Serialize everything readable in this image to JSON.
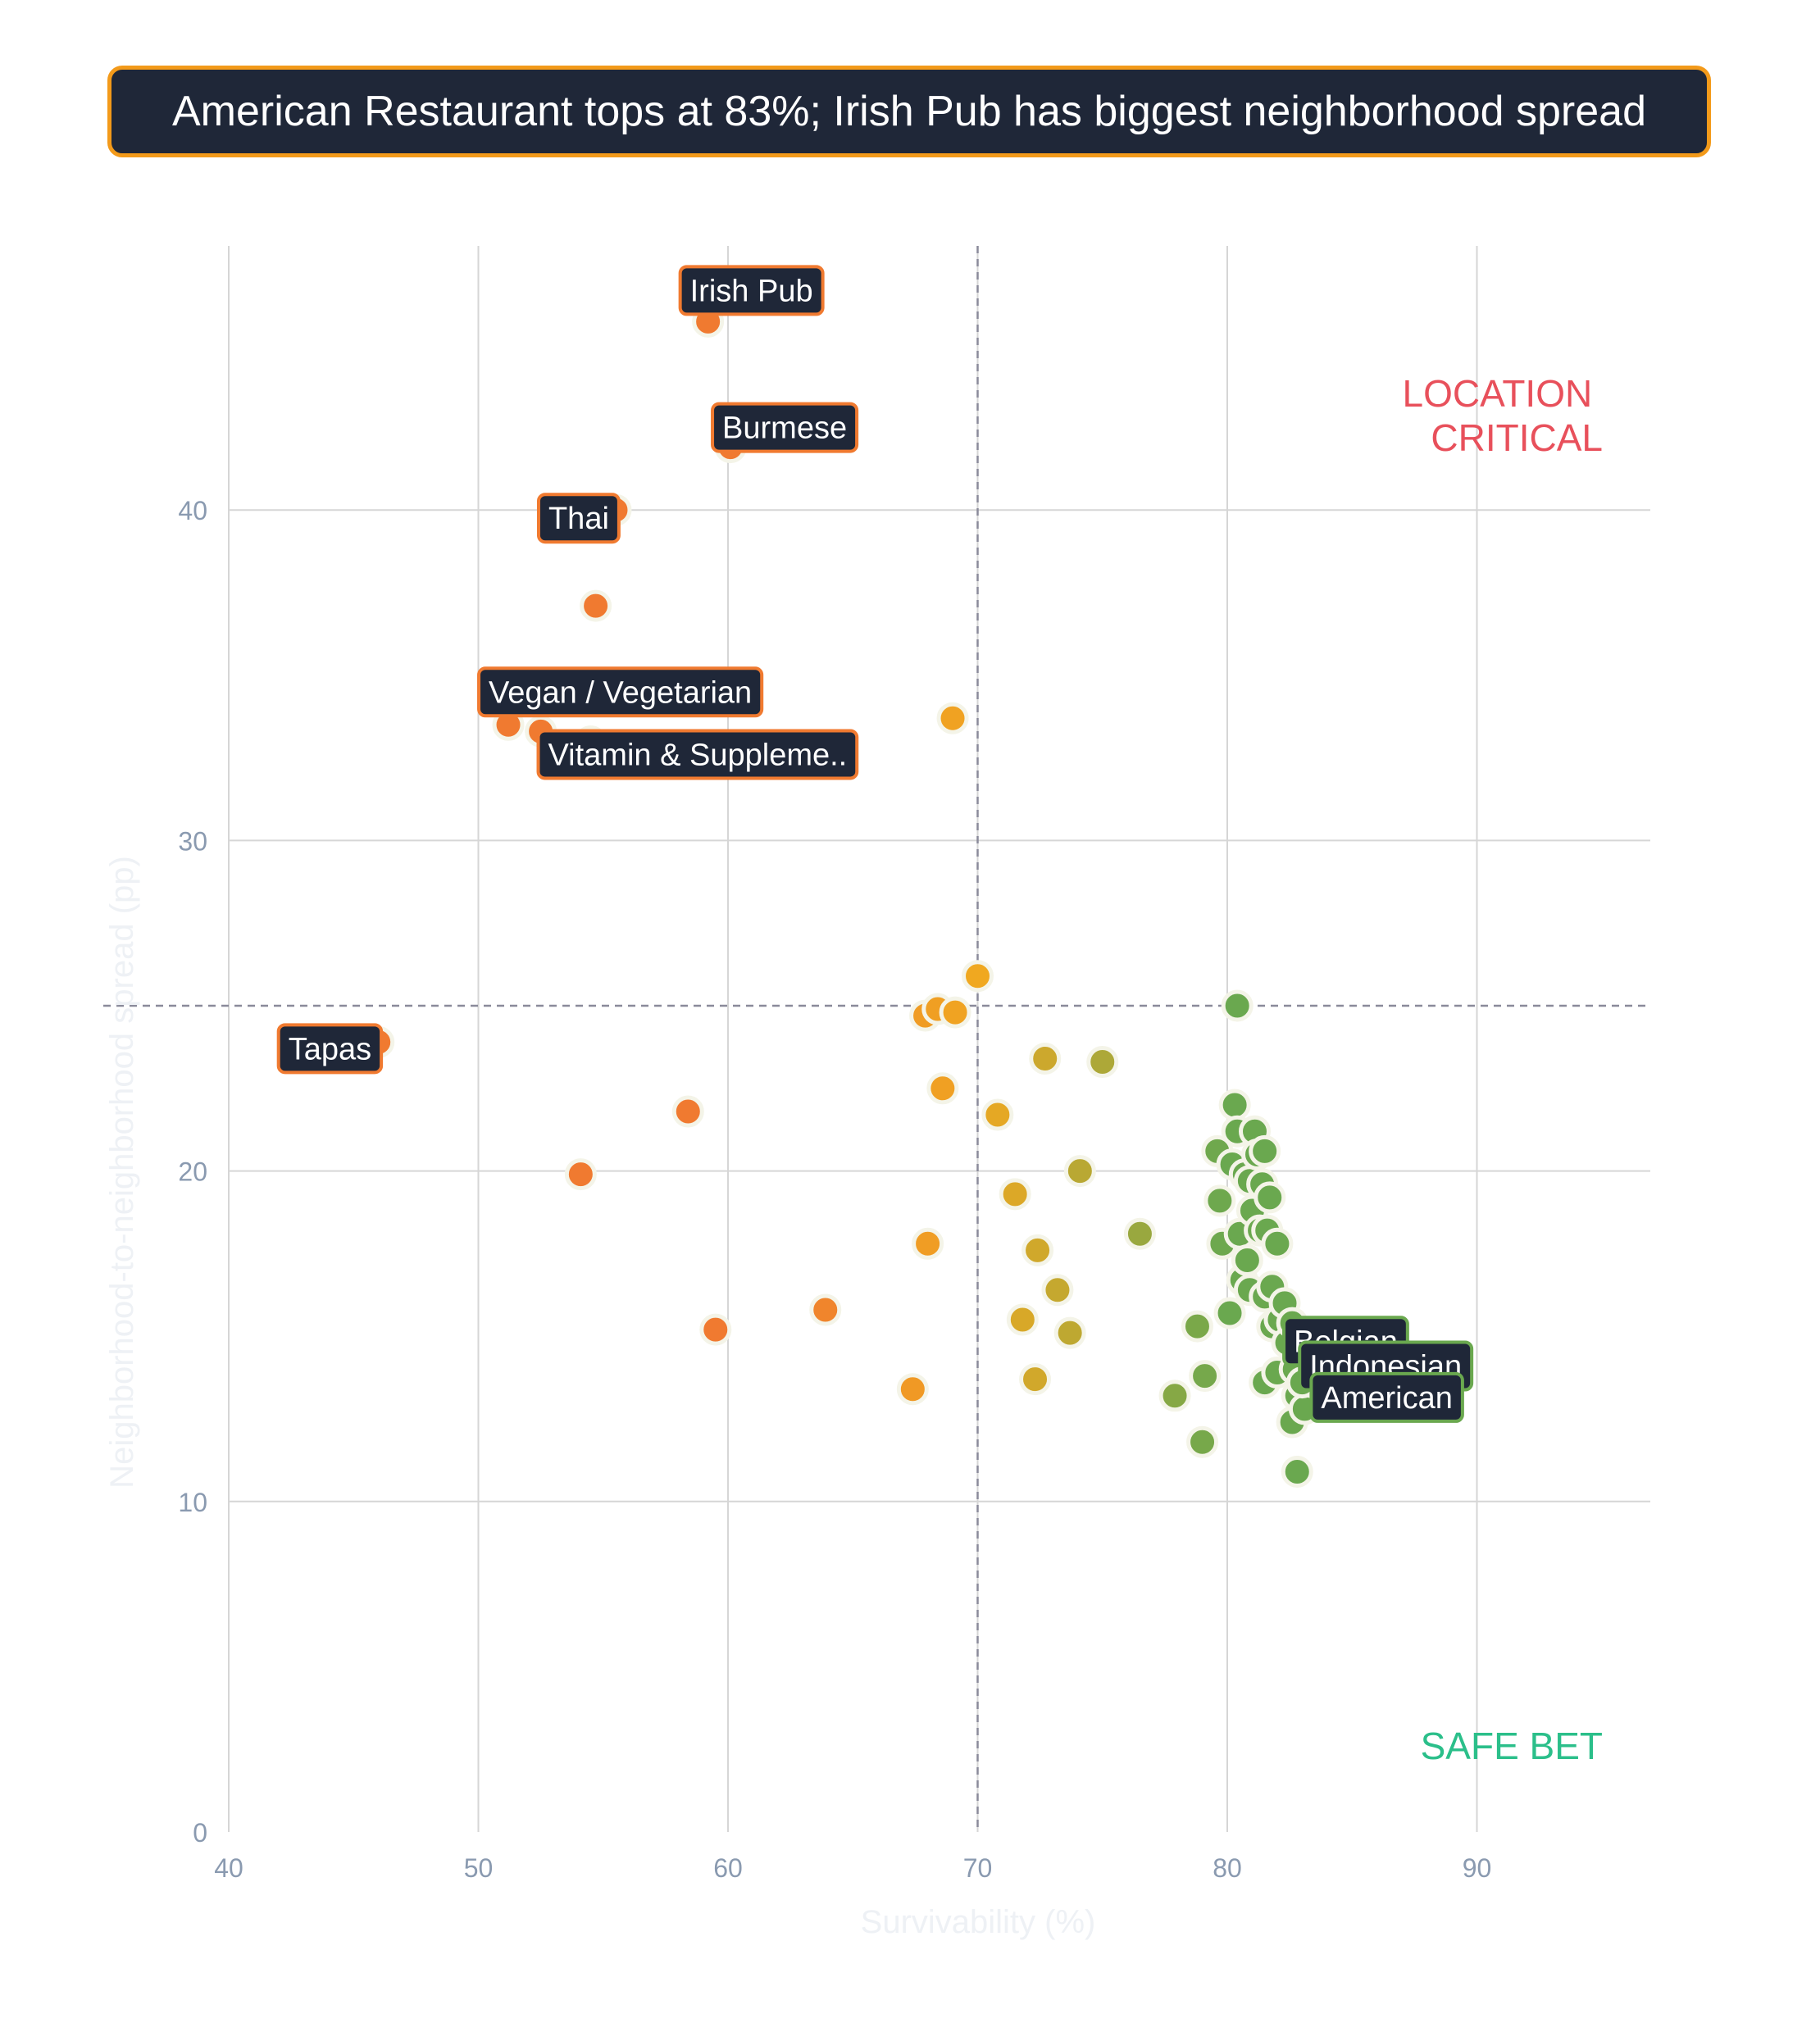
{
  "title": "American Restaurant tops at 83%; Irish Pub has biggest neighborhood spread",
  "colors": {
    "title_bg": "#1f2738",
    "title_border": "#f39a1a",
    "location_critical": "#e8505b",
    "safe_bet": "#2bbf8a",
    "grid": "#d6d6d6",
    "reference_line": "#8a8a9a",
    "low_survival": "#f07a30",
    "mid_survival": "#f0a820",
    "high_survival": "#6aa84f"
  },
  "chart_data": {
    "type": "scatter",
    "xlabel": "Survivability (%)",
    "ylabel": "Neighborhood-to-neighborhood spread (pp)",
    "xlim": [
      40,
      97
    ],
    "ylim": [
      0,
      48
    ],
    "xticks": [
      40,
      50,
      60,
      70,
      80,
      90
    ],
    "yticks": [
      0,
      10,
      20,
      30,
      40
    ],
    "grid": true,
    "reference_lines": {
      "x": 70,
      "y": 25
    },
    "quadrant_labels": {
      "top_right": [
        "LOCATION",
        "CRITICAL"
      ],
      "bottom_right": "SAFE BET"
    },
    "points": [
      {
        "x": 59.2,
        "y": 45.7
      },
      {
        "x": 60.1,
        "y": 41.9
      },
      {
        "x": 55.5,
        "y": 40.0
      },
      {
        "x": 54.7,
        "y": 37.1
      },
      {
        "x": 55.9,
        "y": 34.5
      },
      {
        "x": 51.2,
        "y": 33.5
      },
      {
        "x": 52.5,
        "y": 33.3
      },
      {
        "x": 54.5,
        "y": 33.0
      },
      {
        "x": 69.0,
        "y": 33.7
      },
      {
        "x": 46.0,
        "y": 23.9
      },
      {
        "x": 58.4,
        "y": 21.8
      },
      {
        "x": 54.1,
        "y": 19.9
      },
      {
        "x": 59.5,
        "y": 15.2
      },
      {
        "x": 63.9,
        "y": 15.8
      },
      {
        "x": 67.4,
        "y": 13.4
      },
      {
        "x": 68.0,
        "y": 17.8
      },
      {
        "x": 68.6,
        "y": 22.5
      },
      {
        "x": 67.9,
        "y": 24.7
      },
      {
        "x": 68.4,
        "y": 24.9
      },
      {
        "x": 69.1,
        "y": 24.8
      },
      {
        "x": 70.0,
        "y": 25.9
      },
      {
        "x": 70.8,
        "y": 21.7
      },
      {
        "x": 71.5,
        "y": 19.3
      },
      {
        "x": 71.8,
        "y": 15.5
      },
      {
        "x": 72.3,
        "y": 13.7
      },
      {
        "x": 72.4,
        "y": 17.6
      },
      {
        "x": 72.7,
        "y": 23.4
      },
      {
        "x": 73.2,
        "y": 16.4
      },
      {
        "x": 73.7,
        "y": 15.1
      },
      {
        "x": 74.1,
        "y": 20.0
      },
      {
        "x": 75.0,
        "y": 23.3
      },
      {
        "x": 76.5,
        "y": 18.1
      },
      {
        "x": 77.9,
        "y": 13.2
      },
      {
        "x": 78.8,
        "y": 15.3
      },
      {
        "x": 79.0,
        "y": 11.8
      },
      {
        "x": 79.1,
        "y": 13.8
      },
      {
        "x": 80.4,
        "y": 25.0
      },
      {
        "x": 80.1,
        "y": 15.7
      },
      {
        "x": 79.8,
        "y": 17.8
      },
      {
        "x": 79.7,
        "y": 19.1
      },
      {
        "x": 79.6,
        "y": 20.6
      },
      {
        "x": 80.2,
        "y": 20.2
      },
      {
        "x": 80.3,
        "y": 22.0
      },
      {
        "x": 80.4,
        "y": 21.2
      },
      {
        "x": 80.5,
        "y": 18.1
      },
      {
        "x": 80.6,
        "y": 16.7
      },
      {
        "x": 80.7,
        "y": 19.9
      },
      {
        "x": 80.8,
        "y": 17.3
      },
      {
        "x": 80.9,
        "y": 16.4
      },
      {
        "x": 80.9,
        "y": 19.7
      },
      {
        "x": 81.0,
        "y": 18.8
      },
      {
        "x": 81.1,
        "y": 21.2
      },
      {
        "x": 81.2,
        "y": 20.5
      },
      {
        "x": 81.3,
        "y": 18.2
      },
      {
        "x": 81.4,
        "y": 19.6
      },
      {
        "x": 81.5,
        "y": 16.2
      },
      {
        "x": 81.5,
        "y": 20.6
      },
      {
        "x": 81.6,
        "y": 18.2
      },
      {
        "x": 81.7,
        "y": 19.2
      },
      {
        "x": 81.8,
        "y": 15.3
      },
      {
        "x": 81.8,
        "y": 16.5
      },
      {
        "x": 82.0,
        "y": 17.8
      },
      {
        "x": 81.5,
        "y": 13.6
      },
      {
        "x": 82.0,
        "y": 13.9
      },
      {
        "x": 82.1,
        "y": 15.5
      },
      {
        "x": 82.3,
        "y": 16.0
      },
      {
        "x": 82.4,
        "y": 14.8
      },
      {
        "x": 82.6,
        "y": 15.4
      },
      {
        "x": 82.7,
        "y": 14.0
      },
      {
        "x": 82.8,
        "y": 13.2
      },
      {
        "x": 82.6,
        "y": 12.4
      },
      {
        "x": 82.8,
        "y": 10.9
      },
      {
        "x": 83.1,
        "y": 12.8
      },
      {
        "x": 83.0,
        "y": 13.6
      }
    ],
    "annotations": [
      {
        "label": "Irish Pub",
        "x": 59.2,
        "y": 45.7
      },
      {
        "label": "Burmese",
        "x": 60.1,
        "y": 41.9
      },
      {
        "label": "Thai",
        "x": 55.5,
        "y": 40.0
      },
      {
        "label": "Vegan / Vegetarian",
        "x": 51.2,
        "y": 33.5
      },
      {
        "label": "Vitamin & Suppleme..",
        "x": 54.5,
        "y": 33.0
      },
      {
        "label": "Tapas",
        "x": 46.0,
        "y": 23.9
      },
      {
        "label": "Belgian",
        "x": 82.4,
        "y": 14.8
      },
      {
        "label": "Indonesian",
        "x": 82.7,
        "y": 14.0
      },
      {
        "label": "American",
        "x": 83.1,
        "y": 12.8
      }
    ]
  }
}
